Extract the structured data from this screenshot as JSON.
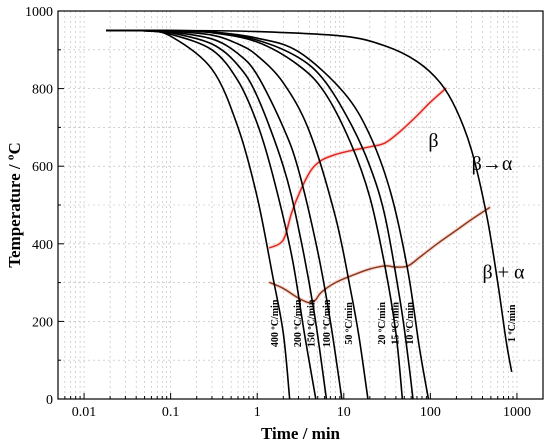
{
  "chart_data": {
    "type": "line",
    "title": "",
    "xlabel": "Time / min",
    "ylabel": "Temperature / ºC",
    "x_scale": "log",
    "xlim": [
      0.005,
      2000
    ],
    "ylim": [
      0,
      1000
    ],
    "x_ticks": [
      {
        "value": 0.01,
        "label": "0.01"
      },
      {
        "value": 0.1,
        "label": "0.1"
      },
      {
        "value": 1,
        "label": "1"
      },
      {
        "value": 10,
        "label": "10"
      },
      {
        "value": 100,
        "label": "100"
      },
      {
        "value": 1000,
        "label": "1000"
      }
    ],
    "y_ticks": [
      {
        "value": 0,
        "label": "0"
      },
      {
        "value": 200,
        "label": "200"
      },
      {
        "value": 400,
        "label": "400"
      },
      {
        "value": 600,
        "label": "600"
      },
      {
        "value": 800,
        "label": "800"
      },
      {
        "value": 1000,
        "label": "1000"
      }
    ],
    "grid": true,
    "cooling_curves": [
      {
        "label": "400 ºC/min",
        "color": "#000000",
        "label_at": [
          1.75,
          195
        ],
        "points": [
          [
            0.018,
            950
          ],
          [
            0.05,
            949
          ],
          [
            0.1,
            935
          ],
          [
            0.3,
            850
          ],
          [
            0.6,
            700
          ],
          [
            1,
            520
          ],
          [
            1.5,
            320
          ],
          [
            2,
            170
          ],
          [
            2.37,
            0
          ]
        ]
      },
      {
        "label": "200 ºC/min",
        "color": "#000000",
        "label_at": [
          3.2,
          195
        ],
        "points": [
          [
            0.018,
            950
          ],
          [
            0.05,
            949
          ],
          [
            0.1,
            940
          ],
          [
            0.3,
            900
          ],
          [
            0.6,
            820
          ],
          [
            1,
            710
          ],
          [
            1.5,
            580
          ],
          [
            2.5,
            370
          ],
          [
            3.5,
            170
          ],
          [
            4.75,
            0
          ]
        ]
      },
      {
        "label": "150 ºC/min",
        "color": "#000000",
        "label_at": [
          4.6,
          195
        ],
        "points": [
          [
            0.018,
            950
          ],
          [
            0.05,
            950
          ],
          [
            0.1,
            944
          ],
          [
            0.3,
            915
          ],
          [
            0.6,
            860
          ],
          [
            1,
            780
          ],
          [
            2,
            600
          ],
          [
            3,
            440
          ],
          [
            4.5,
            230
          ],
          [
            6.3,
            0
          ]
        ]
      },
      {
        "label": "100 ºC/min",
        "color": "#000000",
        "label_at": [
          6.9,
          195
        ],
        "points": [
          [
            0.018,
            950
          ],
          [
            0.05,
            950
          ],
          [
            0.1,
            946
          ],
          [
            0.3,
            928
          ],
          [
            0.6,
            890
          ],
          [
            1,
            835
          ],
          [
            2,
            700
          ],
          [
            3,
            590
          ],
          [
            5,
            380
          ],
          [
            7,
            200
          ],
          [
            9.5,
            0
          ]
        ]
      },
      {
        "label": "50 ºC/min",
        "color": "#000000",
        "label_at": [
          12.5,
          195
        ],
        "points": [
          [
            0.018,
            950
          ],
          [
            0.05,
            950
          ],
          [
            0.1,
            948
          ],
          [
            0.3,
            938
          ],
          [
            0.6,
            915
          ],
          [
            1,
            885
          ],
          [
            2,
            815
          ],
          [
            4,
            690
          ],
          [
            8,
            470
          ],
          [
            12,
            280
          ],
          [
            15,
            160
          ],
          [
            19,
            0
          ]
        ]
      },
      {
        "label": "20 ºC/min",
        "color": "#000000",
        "label_at": [
          30,
          195
        ],
        "points": [
          [
            0.018,
            950
          ],
          [
            0.05,
            950
          ],
          [
            0.1,
            949
          ],
          [
            0.3,
            944
          ],
          [
            1,
            920
          ],
          [
            3,
            860
          ],
          [
            6,
            790
          ],
          [
            12,
            660
          ],
          [
            20,
            520
          ],
          [
            30,
            340
          ],
          [
            40,
            170
          ],
          [
            47.5,
            0
          ]
        ]
      },
      {
        "label": "15 ºC/min",
        "color": "#000000",
        "label_at": [
          43,
          195
        ],
        "points": [
          [
            0.018,
            950
          ],
          [
            0.05,
            950
          ],
          [
            0.1,
            949
          ],
          [
            0.3,
            945
          ],
          [
            1,
            925
          ],
          [
            3,
            880
          ],
          [
            6,
            820
          ],
          [
            12,
            710
          ],
          [
            20,
            600
          ],
          [
            30,
            470
          ],
          [
            45,
            250
          ],
          [
            55,
            110
          ],
          [
            63,
            0
          ]
        ]
      },
      {
        "label": "10 ºC/min",
        "color": "#000000",
        "label_at": [
          63,
          195
        ],
        "points": [
          [
            0.018,
            950
          ],
          [
            0.05,
            950
          ],
          [
            0.1,
            950
          ],
          [
            0.3,
            946
          ],
          [
            1,
            930
          ],
          [
            3,
            895
          ],
          [
            10,
            790
          ],
          [
            20,
            680
          ],
          [
            35,
            530
          ],
          [
            55,
            330
          ],
          [
            75,
            130
          ],
          [
            95,
            0
          ]
        ]
      },
      {
        "label": "1 ºC/min",
        "color": "#000000",
        "label_at": [
          950,
          195
        ],
        "points": [
          [
            0.018,
            950
          ],
          [
            0.1,
            950
          ],
          [
            1,
            947
          ],
          [
            10,
            935
          ],
          [
            30,
            910
          ],
          [
            70,
            870
          ],
          [
            130,
            815
          ],
          [
            200,
            745
          ],
          [
            300,
            640
          ],
          [
            450,
            470
          ],
          [
            600,
            300
          ],
          [
            750,
            150
          ],
          [
            870,
            70
          ]
        ]
      }
    ],
    "phase_boundaries": [
      {
        "name": "start",
        "color": "#e0271f",
        "points": [
          [
            1.4,
            390
          ],
          [
            1.8,
            400
          ],
          [
            2.1,
            420
          ],
          [
            2.5,
            480
          ],
          [
            3.2,
            540
          ],
          [
            4.2,
            590
          ],
          [
            5.5,
            615
          ],
          [
            8,
            630
          ],
          [
            12,
            640
          ],
          [
            20,
            650
          ],
          [
            30,
            660
          ],
          [
            45,
            690
          ],
          [
            70,
            730
          ],
          [
            100,
            765
          ],
          [
            150,
            800
          ]
        ]
      },
      {
        "name": "finish",
        "color": "#8b3a18",
        "points": [
          [
            1.4,
            300
          ],
          [
            2,
            285
          ],
          [
            3,
            260
          ],
          [
            4,
            248
          ],
          [
            4.7,
            255
          ],
          [
            5.5,
            275
          ],
          [
            8,
            300
          ],
          [
            13,
            320
          ],
          [
            20,
            335
          ],
          [
            30,
            343
          ],
          [
            40,
            340
          ],
          [
            55,
            343
          ],
          [
            75,
            365
          ],
          [
            120,
            400
          ],
          [
            200,
            435
          ],
          [
            300,
            463
          ],
          [
            480,
            493
          ]
        ]
      }
    ],
    "annotations": [
      {
        "text": "β",
        "at": [
          95,
          650
        ]
      },
      {
        "text": "β→α",
        "at": [
          300,
          590
        ]
      },
      {
        "text": "β + α",
        "at": [
          400,
          310
        ]
      }
    ]
  }
}
